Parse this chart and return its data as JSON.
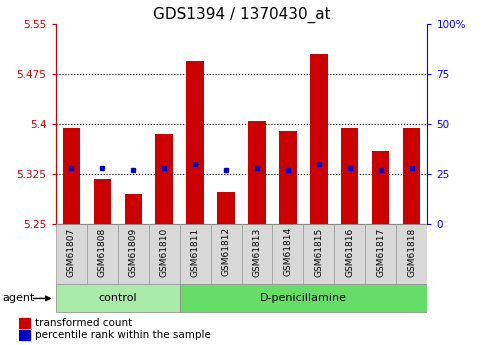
{
  "title": "GDS1394 / 1370430_at",
  "samples": [
    "GSM61807",
    "GSM61808",
    "GSM61809",
    "GSM61810",
    "GSM61811",
    "GSM61812",
    "GSM61813",
    "GSM61814",
    "GSM61815",
    "GSM61816",
    "GSM61817",
    "GSM61818"
  ],
  "bar_tops": [
    5.395,
    5.318,
    5.295,
    5.385,
    5.495,
    5.298,
    5.405,
    5.39,
    5.505,
    5.395,
    5.36,
    5.395
  ],
  "bar_bottom": 5.25,
  "percentile_ranks": [
    28,
    28,
    27,
    28,
    30,
    27,
    28,
    27,
    30,
    28,
    27,
    28
  ],
  "ylim_left": [
    5.25,
    5.55
  ],
  "ylim_right": [
    0,
    100
  ],
  "yticks_left": [
    5.25,
    5.325,
    5.4,
    5.475,
    5.55
  ],
  "yticks_right": [
    0,
    25,
    50,
    75,
    100
  ],
  "ytick_labels_left": [
    "5.25",
    "5.325",
    "5.4",
    "5.475",
    "5.55"
  ],
  "ytick_labels_right": [
    "0",
    "25",
    "50",
    "75",
    "100%"
  ],
  "gridlines": [
    5.325,
    5.4,
    5.475
  ],
  "bar_color": "#cc0000",
  "dot_color": "#0000cc",
  "control_color": "#aaeaaa",
  "dpen_color": "#66dd66",
  "sample_box_color": "#d8d8d8",
  "group_label_control": "control",
  "group_label_dpen": "D-penicillamine",
  "legend_bar_label": "transformed count",
  "legend_dot_label": "percentile rank within the sample",
  "agent_label": "agent",
  "title_fontsize": 11,
  "bar_width": 0.55,
  "control_indices": [
    0,
    1,
    2,
    3
  ],
  "dpen_indices": [
    4,
    5,
    6,
    7,
    8,
    9,
    10,
    11
  ]
}
